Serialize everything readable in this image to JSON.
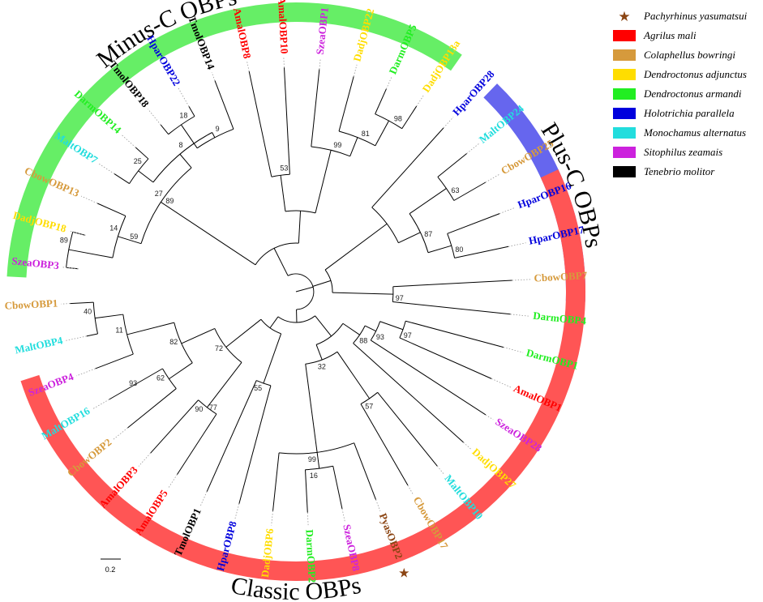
{
  "colors": {
    "red": "#ff0000",
    "orange": "#d69a3c",
    "yellow": "#ffdd00",
    "green": "#22ee22",
    "blue": "#0000dd",
    "cyan": "#22dddd",
    "magenta": "#cc22dd",
    "black": "#000000",
    "brown": "#8b4513",
    "minus_band": "#66ee66",
    "plus_band": "#6666ee",
    "classic_band": "#ff5555"
  },
  "groups": {
    "minus_c": "Minus-C OBPs",
    "plus_c": "Plus-C OBPs",
    "classic": "Classic OBPs"
  },
  "legend": [
    {
      "icon": "star-icon",
      "color": "brown",
      "label": "Pachyrhinus yasumatsui"
    },
    {
      "icon": "swatch",
      "color": "red",
      "label": "Agrilus mali"
    },
    {
      "icon": "swatch",
      "color": "orange",
      "label": "Colaphellus bowringi"
    },
    {
      "icon": "swatch",
      "color": "yellow",
      "label": "Dendroctonus adjunctus"
    },
    {
      "icon": "swatch",
      "color": "green",
      "label": "Dendroctonus armandi"
    },
    {
      "icon": "swatch",
      "color": "blue",
      "label": "Holotrichia parallela"
    },
    {
      "icon": "swatch",
      "color": "cyan",
      "label": "Monochamus alternatus"
    },
    {
      "icon": "swatch",
      "color": "magenta",
      "label": "Sitophilus zeamais"
    },
    {
      "icon": "swatch",
      "color": "black",
      "label": "Tenebrio molitor"
    }
  ],
  "scale_label": "0.2",
  "leaves": [
    {
      "id": "SzeaOBP3",
      "color": "magenta"
    },
    {
      "id": "DadjOBP18",
      "color": "yellow"
    },
    {
      "id": "CbowOBP13",
      "color": "orange"
    },
    {
      "id": "MaltOBP7",
      "color": "cyan"
    },
    {
      "id": "DarmOBP14",
      "color": "green"
    },
    {
      "id": "TmolOBP18",
      "color": "black"
    },
    {
      "id": "HparOBP22",
      "color": "blue"
    },
    {
      "id": "TmolOBP14",
      "color": "black"
    },
    {
      "id": "AmalOBP8",
      "color": "red"
    },
    {
      "id": "AmalOBP10",
      "color": "red"
    },
    {
      "id": "SzeaOBP1",
      "color": "magenta"
    },
    {
      "id": "DadjOBP22",
      "color": "yellow"
    },
    {
      "id": "DarmOBP5",
      "color": "green"
    },
    {
      "id": "DadjOBP13a",
      "color": "yellow"
    },
    {
      "id": "HparOBP28",
      "color": "blue"
    },
    {
      "id": "MaltOBP24",
      "color": "cyan"
    },
    {
      "id": "CbowOBP25",
      "color": "orange"
    },
    {
      "id": "HparOBP16",
      "color": "blue"
    },
    {
      "id": "HparOBP17",
      "color": "blue"
    },
    {
      "id": "CbowOBP7",
      "color": "orange"
    },
    {
      "id": "DarmOBP4",
      "color": "green"
    },
    {
      "id": "DarmOBP1",
      "color": "green"
    },
    {
      "id": "AmalOBP1",
      "color": "red"
    },
    {
      "id": "SzeaOBP28",
      "color": "magenta"
    },
    {
      "id": "DadjOBP27",
      "color": "yellow"
    },
    {
      "id": "MaltOBP10",
      "color": "cyan"
    },
    {
      "id": "CbowOBP17",
      "color": "orange"
    },
    {
      "id": "PyasOBP2",
      "color": "brown"
    },
    {
      "id": "SzeaOBP8",
      "color": "magenta"
    },
    {
      "id": "DarmOBP2",
      "color": "green"
    },
    {
      "id": "DadjOBP6",
      "color": "yellow"
    },
    {
      "id": "HparOBP8",
      "color": "blue"
    },
    {
      "id": "TmolOBP1",
      "color": "black"
    },
    {
      "id": "AmalOBP5",
      "color": "red"
    },
    {
      "id": "AmalOBP3",
      "color": "red"
    },
    {
      "id": "CbowOBP2",
      "color": "orange"
    },
    {
      "id": "MaltOBP16",
      "color": "cyan"
    },
    {
      "id": "SzeaOBP4",
      "color": "magenta"
    },
    {
      "id": "MaltOBP4",
      "color": "cyan"
    },
    {
      "id": "CbowOBP1",
      "color": "orange"
    }
  ],
  "bootstrap": [
    "89",
    "14",
    "25",
    "8",
    "9",
    "18",
    "27",
    "53",
    "99",
    "81",
    "98",
    "63",
    "80",
    "97",
    "87",
    "97",
    "93",
    "88",
    "57",
    "16",
    "32",
    "99",
    "55",
    "90",
    "62",
    "82",
    "11",
    "40",
    "72",
    "89",
    "59",
    "77",
    "93"
  ]
}
